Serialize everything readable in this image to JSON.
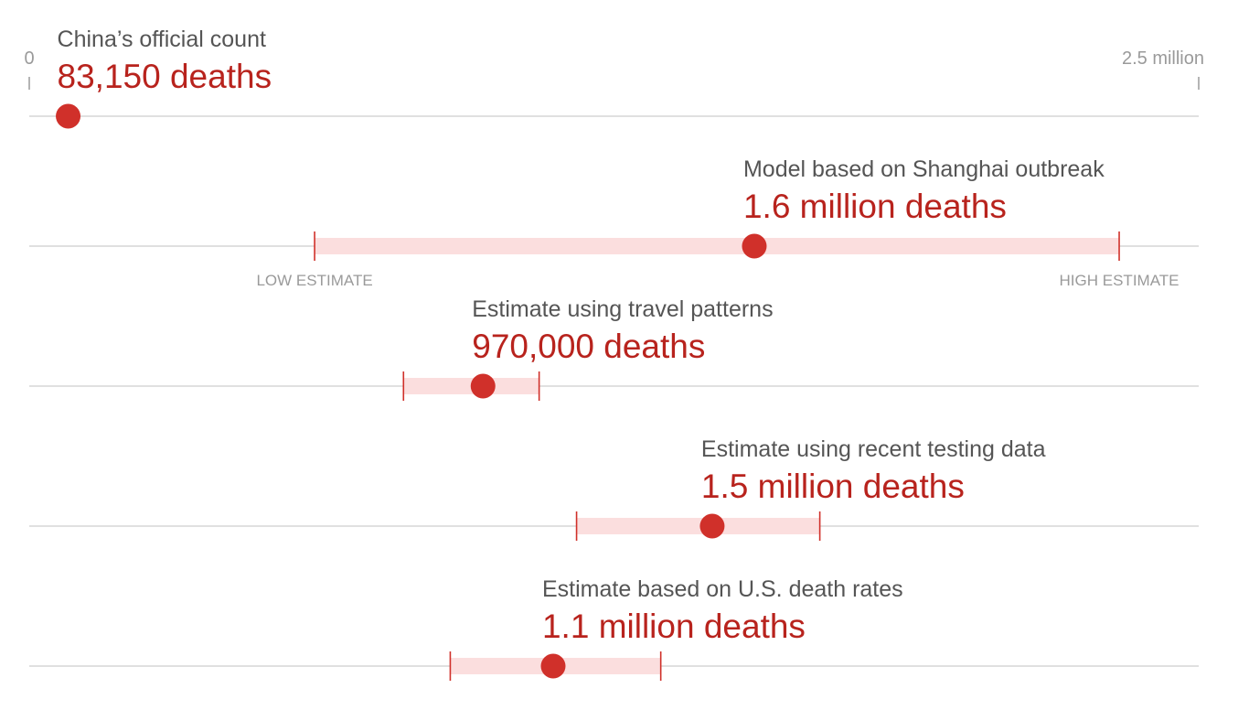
{
  "chart_data": {
    "type": "scatter",
    "title": "",
    "xlabel": "",
    "ylabel": "",
    "xlim": [
      0,
      2500000
    ],
    "axis": {
      "min_label": "0",
      "max_label": "2.5 million"
    },
    "range_labels": {
      "low": "LOW ESTIMATE",
      "high": "HIGH ESTIMATE"
    },
    "colors": {
      "point": "#d0302a",
      "value_text": "#b8231d",
      "range_band": "#fbdede",
      "range_tick": "#d0302a",
      "baseline": "#d6d6d6",
      "label_text": "#555555"
    },
    "rows": [
      {
        "label": "China’s official count",
        "value_text": "83,150 deaths",
        "value": 83150,
        "low": null,
        "high": null
      },
      {
        "label": "Model based on Shanghai outbreak",
        "value_text": "1.6 million deaths",
        "value": 1550000,
        "low": 610000,
        "high": 2330000
      },
      {
        "label": "Estimate using travel patterns",
        "value_text": "970,000 deaths",
        "value": 970000,
        "low": 800000,
        "high": 1090000
      },
      {
        "label": "Estimate using recent testing data",
        "value_text": "1.5 million deaths",
        "value": 1460000,
        "low": 1170000,
        "high": 1690000
      },
      {
        "label": "Estimate based on U.S. death rates",
        "value_text": "1.1 million deaths",
        "value": 1120000,
        "low": 900000,
        "high": 1350000
      }
    ]
  }
}
